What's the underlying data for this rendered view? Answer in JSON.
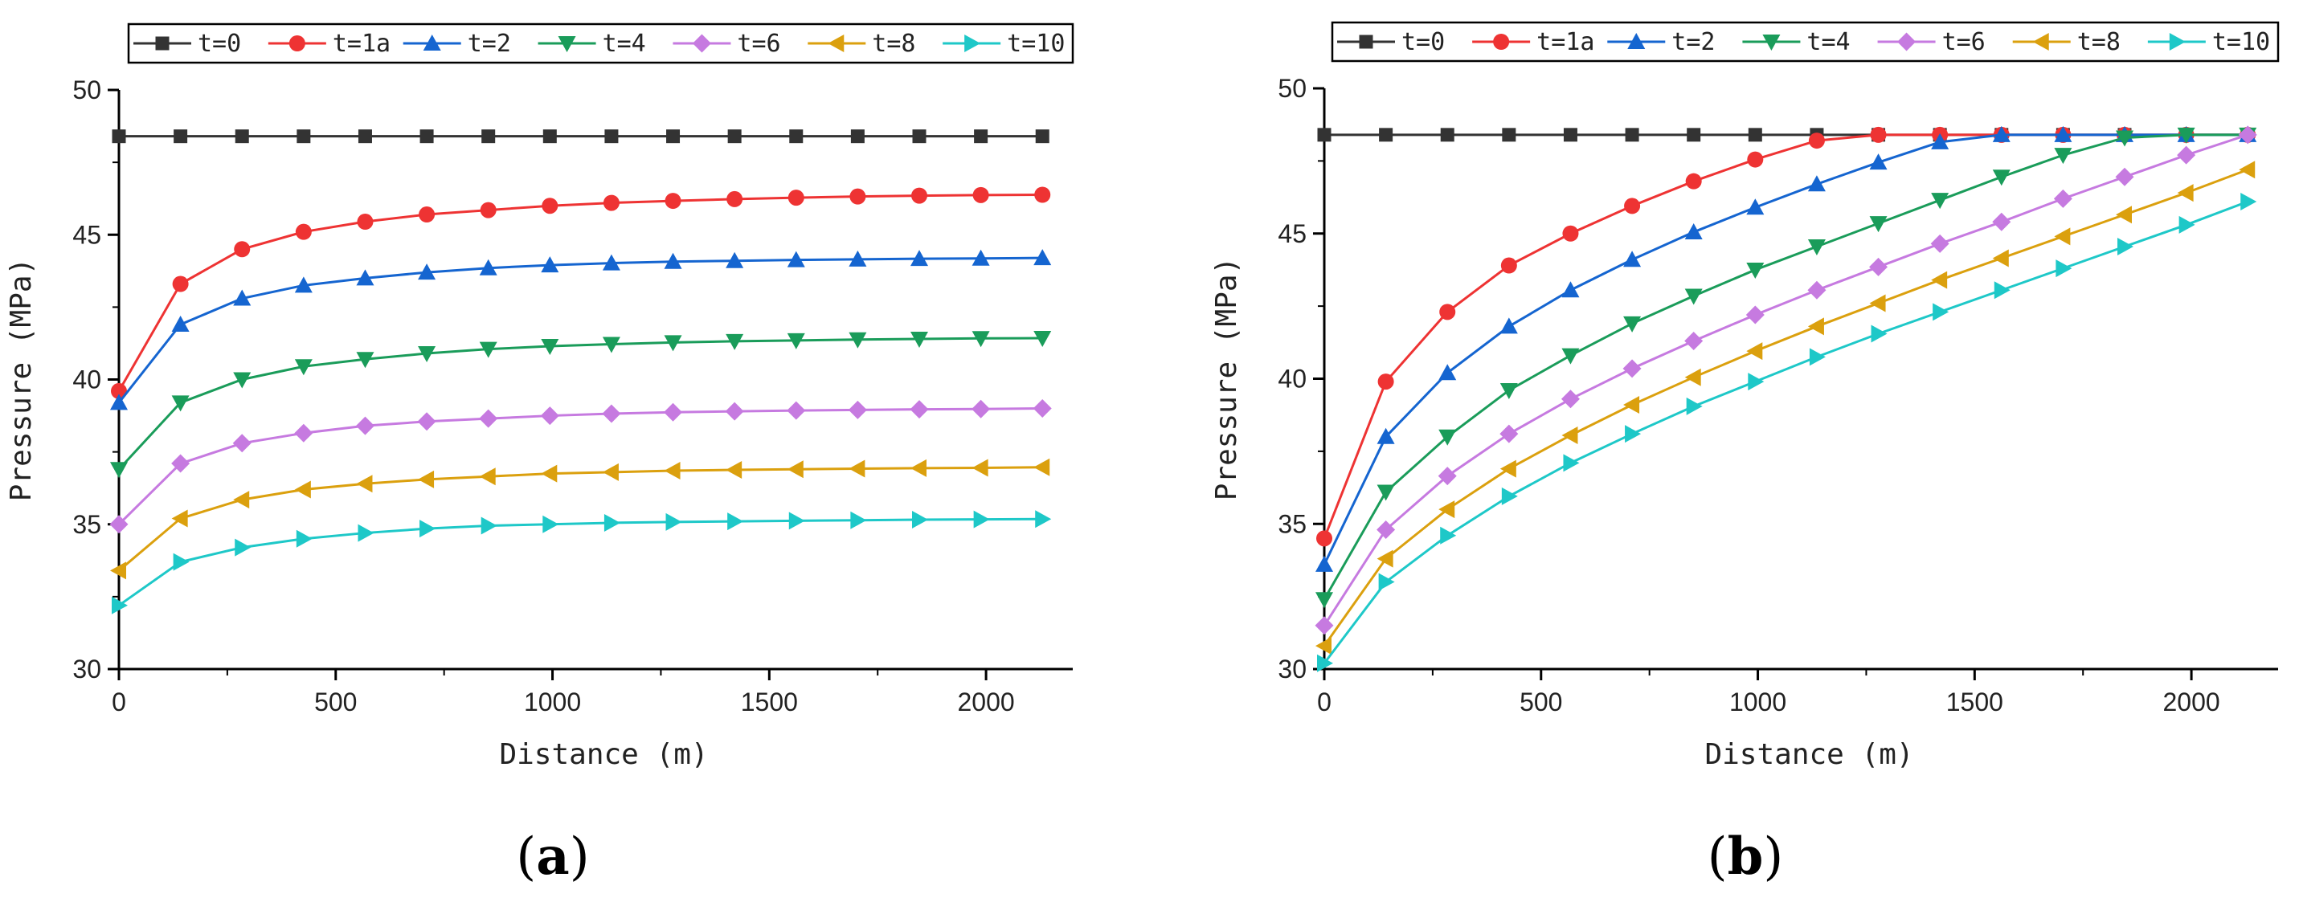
{
  "chart_data": [
    {
      "type": "line",
      "panel_label": "(a)",
      "panel_letter": "a",
      "xlabel": "Distance (m)",
      "ylabel": "Pressure (MPa)",
      "xlim": [
        0,
        2200
      ],
      "ylim": [
        30,
        50
      ],
      "x_ticks": [
        0,
        500,
        1000,
        1500,
        2000
      ],
      "y_ticks": [
        30,
        35,
        40,
        45,
        50
      ],
      "x_tick_labels": [
        "0",
        "500",
        "1000",
        "1500",
        "2000"
      ],
      "y_tick_labels": [
        "30",
        "35",
        "40",
        "45",
        "50"
      ],
      "legend_position": "top",
      "x": [
        0,
        142,
        284,
        426,
        568,
        710,
        852,
        994,
        1136,
        1278,
        1420,
        1562,
        1704,
        1846,
        1988,
        2130
      ],
      "series": [
        {
          "name": "t=0",
          "color": "#333333",
          "marker": "square",
          "values": [
            48.4,
            48.4,
            48.4,
            48.4,
            48.4,
            48.4,
            48.4,
            48.4,
            48.4,
            48.4,
            48.4,
            48.4,
            48.4,
            48.4,
            48.4,
            48.4
          ]
        },
        {
          "name": "t=1a",
          "color": "#ee3333",
          "marker": "circle",
          "values": [
            39.6,
            43.3,
            44.5,
            45.1,
            45.45,
            45.7,
            45.85,
            46.0,
            46.1,
            46.17,
            46.23,
            46.28,
            46.32,
            46.35,
            46.37,
            46.38
          ]
        },
        {
          "name": "t=2",
          "color": "#1565d0",
          "marker": "triangle-up",
          "values": [
            39.2,
            41.9,
            42.8,
            43.25,
            43.5,
            43.7,
            43.85,
            43.95,
            44.02,
            44.07,
            44.1,
            44.13,
            44.15,
            44.17,
            44.18,
            44.2
          ]
        },
        {
          "name": "t=4",
          "color": "#1a9c5a",
          "marker": "triangle-down",
          "values": [
            36.9,
            39.2,
            40.0,
            40.45,
            40.7,
            40.9,
            41.05,
            41.15,
            41.22,
            41.28,
            41.32,
            41.35,
            41.38,
            41.4,
            41.42,
            41.43
          ]
        },
        {
          "name": "t=6",
          "color": "#c67ae0",
          "marker": "diamond",
          "values": [
            35.0,
            37.1,
            37.8,
            38.15,
            38.4,
            38.55,
            38.65,
            38.75,
            38.82,
            38.87,
            38.9,
            38.93,
            38.95,
            38.97,
            38.98,
            39.0
          ]
        },
        {
          "name": "t=8",
          "color": "#dba00e",
          "marker": "triangle-left",
          "values": [
            33.4,
            35.2,
            35.85,
            36.2,
            36.4,
            36.55,
            36.65,
            36.75,
            36.8,
            36.85,
            36.88,
            36.9,
            36.92,
            36.94,
            36.95,
            36.97
          ]
        },
        {
          "name": "t=10",
          "color": "#1ec8c8",
          "marker": "triangle-right",
          "values": [
            32.2,
            33.7,
            34.2,
            34.5,
            34.7,
            34.85,
            34.95,
            35.0,
            35.05,
            35.08,
            35.1,
            35.12,
            35.14,
            35.16,
            35.17,
            35.18
          ]
        }
      ]
    },
    {
      "type": "line",
      "panel_label": "(b)",
      "panel_letter": "b",
      "xlabel": "Distance (m)",
      "ylabel": "Pressure (MPa)",
      "xlim": [
        0,
        2200
      ],
      "ylim": [
        30,
        50
      ],
      "x_ticks": [
        0,
        500,
        1000,
        1500,
        2000
      ],
      "y_ticks": [
        30,
        35,
        40,
        45,
        50
      ],
      "x_tick_labels": [
        "0",
        "500",
        "1000",
        "1500",
        "2000"
      ],
      "y_tick_labels": [
        "30",
        "35",
        "40",
        "45",
        "50"
      ],
      "legend_position": "top",
      "x": [
        0,
        142,
        284,
        426,
        568,
        710,
        852,
        994,
        1136,
        1278,
        1420,
        1562,
        1704,
        1846,
        1988,
        2130
      ],
      "series": [
        {
          "name": "t=0",
          "color": "#333333",
          "marker": "square",
          "values": [
            48.4,
            48.4,
            48.4,
            48.4,
            48.4,
            48.4,
            48.4,
            48.4,
            48.4,
            48.4,
            48.4,
            48.4,
            48.4,
            48.4,
            48.4,
            48.4
          ]
        },
        {
          "name": "t=1a",
          "color": "#ee3333",
          "marker": "circle",
          "values": [
            34.5,
            39.9,
            42.3,
            43.9,
            45.0,
            45.95,
            46.8,
            47.55,
            48.2,
            48.4,
            48.4,
            48.4,
            48.4,
            48.4,
            48.4,
            48.4
          ]
        },
        {
          "name": "t=2",
          "color": "#1565d0",
          "marker": "triangle-up",
          "values": [
            33.6,
            38.0,
            40.2,
            41.8,
            43.05,
            44.1,
            45.05,
            45.9,
            46.7,
            47.45,
            48.15,
            48.4,
            48.4,
            48.4,
            48.4,
            48.4
          ]
        },
        {
          "name": "t=4",
          "color": "#1a9c5a",
          "marker": "triangle-down",
          "values": [
            32.4,
            36.1,
            38.0,
            39.6,
            40.8,
            41.9,
            42.85,
            43.75,
            44.55,
            45.35,
            46.15,
            46.95,
            47.7,
            48.3,
            48.4,
            48.4
          ]
        },
        {
          "name": "t=6",
          "color": "#c67ae0",
          "marker": "diamond",
          "values": [
            31.5,
            34.8,
            36.65,
            38.1,
            39.3,
            40.35,
            41.3,
            42.2,
            43.05,
            43.85,
            44.65,
            45.4,
            46.2,
            46.95,
            47.7,
            48.4
          ]
        },
        {
          "name": "t=8",
          "color": "#dba00e",
          "marker": "triangle-left",
          "values": [
            30.8,
            33.8,
            35.5,
            36.9,
            38.05,
            39.1,
            40.05,
            40.95,
            41.8,
            42.6,
            43.4,
            44.15,
            44.9,
            45.65,
            46.4,
            47.2
          ]
        },
        {
          "name": "t=10",
          "color": "#1ec8c8",
          "marker": "triangle-right",
          "values": [
            30.2,
            33.0,
            34.6,
            35.95,
            37.1,
            38.1,
            39.05,
            39.9,
            40.75,
            41.55,
            42.3,
            43.05,
            43.8,
            44.55,
            45.3,
            46.1
          ]
        }
      ]
    }
  ]
}
